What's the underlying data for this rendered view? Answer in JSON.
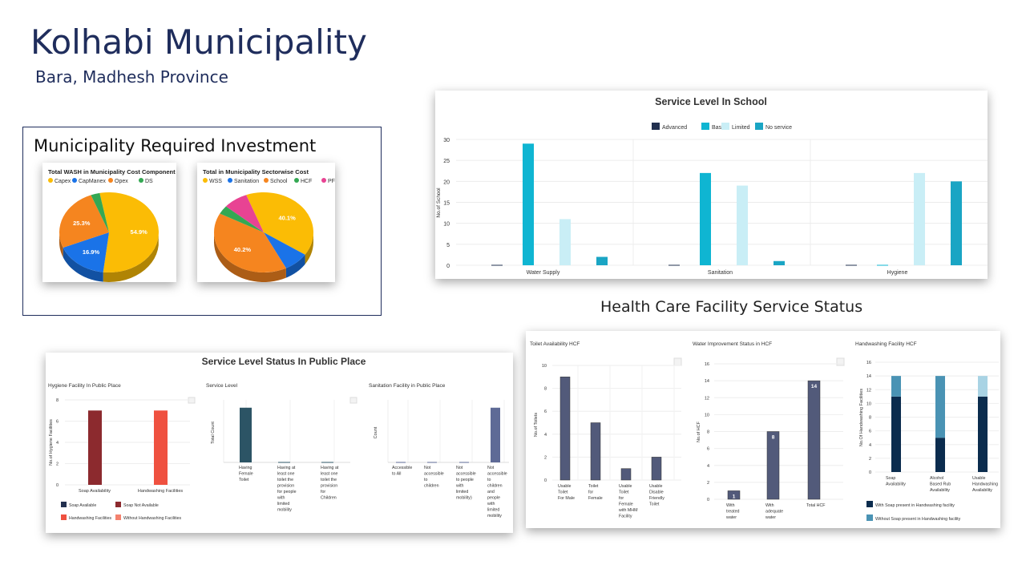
{
  "title": "Kolhabi Municipality",
  "subtitle": "Bara, Madhesh Province",
  "investment": {
    "heading": "Municipality Required Investment"
  },
  "hcf_heading": "Health Care Facility Service Status",
  "chart_data": [
    {
      "id": "pie1",
      "type": "pie",
      "title": "Total WASH in Municipality Cost Component",
      "legend": [
        "Capex",
        "CapManex",
        "Opex",
        "DS"
      ],
      "colors": [
        "#fbbc05",
        "#1a73e8",
        "#f5851f",
        "#34a853"
      ],
      "values": [
        54.9,
        16.9,
        25.3,
        2.9
      ],
      "labels": [
        "54.9%",
        "16.9%",
        "25.3%",
        ""
      ]
    },
    {
      "id": "pie2",
      "type": "pie",
      "title": "Total in Municipality Sectorwise Cost",
      "legend": [
        "WSS",
        "Sanitation",
        "School",
        "HCF",
        "PF"
      ],
      "colors": [
        "#fbbc05",
        "#1a73e8",
        "#f5851f",
        "#34a853",
        "#e84393"
      ],
      "values": [
        40.1,
        8.2,
        40.2,
        3.5,
        8.0
      ],
      "labels": [
        "40.1%",
        "",
        "40.2%",
        "",
        ""
      ]
    },
    {
      "id": "school",
      "type": "bar",
      "title": "Service Level In School",
      "categories": [
        "Water Supply",
        "Sanitation",
        "Hygiene"
      ],
      "series": [
        {
          "name": "Advanced",
          "color": "#22304f",
          "values": [
            0,
            0,
            0
          ]
        },
        {
          "name": "Basic",
          "color": "#0fb5d2",
          "values": [
            29,
            22,
            0
          ]
        },
        {
          "name": "Limited",
          "color": "#c9eef6",
          "values": [
            11,
            19,
            22
          ]
        },
        {
          "name": "No service",
          "color": "#1aa5c4",
          "values": [
            2,
            1,
            20
          ]
        }
      ],
      "ylabel": "No.of School",
      "yticks": [
        "0",
        "5",
        "10",
        "15",
        "20",
        "25",
        "30"
      ],
      "ylim": [
        0,
        30
      ]
    },
    {
      "id": "public",
      "type": "bar",
      "title": "Service Level Status In Public Place",
      "panels": [
        {
          "id": "hygiene",
          "title": "Hygiene Facility In Public Place",
          "ylabel": "No.of Hygiene Facilities",
          "yticks": [
            "0",
            "2",
            "4",
            "6",
            "8"
          ],
          "ylim": [
            0,
            8
          ],
          "categories": [
            "Soap Availability",
            "Handwashing Facilities"
          ],
          "values": [
            7,
            7
          ],
          "colors": [
            "#8c2a2e",
            "#ef5140"
          ],
          "legend": [
            {
              "label": "Soap Available",
              "color": "#22304f"
            },
            {
              "label": "Soap Not Available",
              "color": "#8c2a2e"
            },
            {
              "label": "Handwashing Facilities",
              "color": "#ef5140"
            },
            {
              "label": "Without Handwashing Facilities",
              "color": "#f4826e"
            }
          ]
        },
        {
          "id": "service",
          "title": "Service Level",
          "ylabel": "Total Count",
          "categories": [
            "Having Female Toilet",
            "Having at least one toilet the provision for people with limited mobility",
            "Having at least one toilet the provision for Children"
          ],
          "values": [
            7,
            0,
            0
          ],
          "ylim": [
            0,
            8
          ],
          "color": "#2c5465"
        },
        {
          "id": "sanitation",
          "title": "Sanitation Facility in Public Place",
          "ylabel": "Count",
          "categories": [
            "Accessible to All",
            "Not accessible to children",
            "Not accessible to people with limited mobility)",
            "Not accessible to children and people with limited mobility"
          ],
          "values": [
            0,
            0,
            0,
            7
          ],
          "ylim": [
            0,
            8
          ],
          "color": "#5e6a96"
        }
      ]
    },
    {
      "id": "hcf",
      "type": "bar",
      "panels": [
        {
          "id": "toilet",
          "title": "Toilet Availability HCF",
          "ylabel": "No.of Toilets",
          "yticks": [
            "0",
            "2",
            "4",
            "6",
            "8",
            "10"
          ],
          "ylim": [
            0,
            10
          ],
          "categories": [
            "Usable Toilet For Male",
            "Toilet for Female",
            "Usable Toilet for Female with MHM Facility",
            "Usable Disable Friendly Toilet"
          ],
          "values": [
            9,
            5,
            1,
            2
          ],
          "color": "#525a7a"
        },
        {
          "id": "water",
          "title": "Water Improvement Status in HCF",
          "ylabel": "No.of HCF",
          "yticks": [
            "0",
            "2",
            "4",
            "6",
            "8",
            "10",
            "12",
            "14",
            "16"
          ],
          "ylim": [
            0,
            16
          ],
          "categories": [
            "With treated water",
            "With adequate water",
            "Total HCF"
          ],
          "values": [
            1,
            8,
            14
          ],
          "labels": [
            "1",
            "8",
            "14"
          ],
          "color": "#525a7a"
        },
        {
          "id": "handwash",
          "title": "Handwashing Facility HCF",
          "ylabel": "No.Of Handwashing Facilities",
          "yticks": [
            "0",
            "2",
            "4",
            "6",
            "8",
            "10",
            "12",
            "14",
            "16"
          ],
          "ylim": [
            0,
            16
          ],
          "categories": [
            "Soap Availability",
            "Alcohol Based Rub Availability",
            "Usable Handwashing Availability"
          ],
          "series": [
            {
              "name": "With Soap present in Handwashing facility",
              "color": "#0b2c4e",
              "values": [
                11,
                5,
                11
              ]
            },
            {
              "name": "Without Soap present in Handwashing facility",
              "color": "#4a93b4",
              "values": [
                3,
                9,
                3
              ]
            }
          ],
          "top_color": "#a9d3e4"
        }
      ]
    }
  ]
}
